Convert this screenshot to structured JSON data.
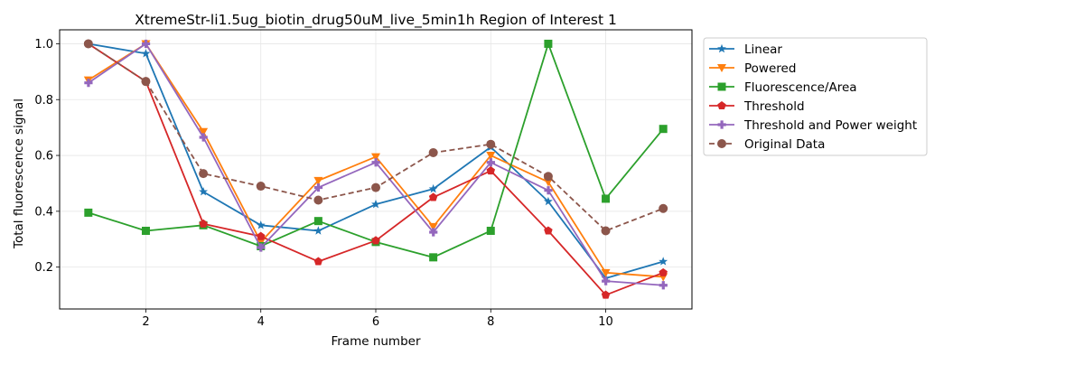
{
  "chart_data": {
    "type": "line",
    "title": "XtremeStr-li1.5ug_biotin_drug50uM_live_5min1h Region of Interest 1",
    "xlabel": "Frame number",
    "ylabel": "Total fluorescence signal",
    "xlim": [
      0.5,
      11.5
    ],
    "ylim": [
      0.05,
      1.05
    ],
    "xticks": [
      2,
      4,
      6,
      8,
      10
    ],
    "yticks": [
      0.2,
      0.4,
      0.6,
      0.8,
      1.0
    ],
    "xtick_labels": [
      "2",
      "4",
      "6",
      "8",
      "10"
    ],
    "ytick_labels": [
      "0.2",
      "0.4",
      "0.6",
      "0.8",
      "1.0"
    ],
    "grid": true,
    "legend_position": "outside-right-top",
    "x": [
      1,
      2,
      3,
      4,
      5,
      6,
      7,
      8,
      9,
      10,
      11
    ],
    "series": [
      {
        "name": "Linear",
        "color": "#1f77b4",
        "marker": "star",
        "dashed": false,
        "values": [
          1.0,
          0.965,
          0.47,
          0.35,
          0.33,
          0.425,
          0.48,
          0.63,
          0.435,
          0.16,
          0.22
        ]
      },
      {
        "name": "Powered",
        "color": "#ff7f0e",
        "marker": "triangle-down",
        "dashed": false,
        "values": [
          0.87,
          1.0,
          0.685,
          0.29,
          0.51,
          0.595,
          0.345,
          0.6,
          0.505,
          0.18,
          0.165
        ]
      },
      {
        "name": "Fluorescence/Area",
        "color": "#2ca02c",
        "marker": "square",
        "dashed": false,
        "values": [
          0.395,
          0.33,
          0.35,
          0.275,
          0.365,
          0.29,
          0.235,
          0.33,
          1.0,
          0.445,
          0.695
        ]
      },
      {
        "name": "Threshold",
        "color": "#d62728",
        "marker": "pentagon",
        "dashed": false,
        "values": [
          1.0,
          0.865,
          0.355,
          0.31,
          0.22,
          0.295,
          0.45,
          0.545,
          0.33,
          0.1,
          0.18
        ]
      },
      {
        "name": "Threshold and Power weight",
        "color": "#9467bd",
        "marker": "plus",
        "dashed": false,
        "values": [
          0.86,
          1.0,
          0.665,
          0.27,
          0.485,
          0.575,
          0.325,
          0.575,
          0.475,
          0.15,
          0.135
        ]
      },
      {
        "name": "Original Data",
        "color": "#8c564b",
        "marker": "circle",
        "dashed": true,
        "values": [
          1.0,
          0.865,
          0.535,
          0.49,
          0.44,
          0.485,
          0.61,
          0.64,
          0.525,
          0.33,
          0.41
        ]
      }
    ]
  }
}
